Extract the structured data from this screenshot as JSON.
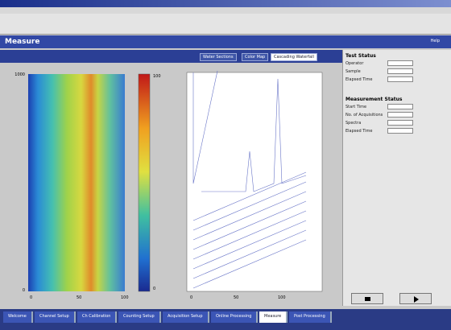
{
  "header": {
    "title": "Measure",
    "help": "Help"
  },
  "tabs": [
    "Water Sections",
    "Color Map",
    "Cascading Waterfall"
  ],
  "plot": {
    "y_top": "1000",
    "y_bottom": "0",
    "x_ticks": [
      "0",
      "50",
      "100"
    ],
    "colorbar_top": "100",
    "colorbar_bottom": "0",
    "waterfall_x_ticks": [
      "0",
      "50",
      "100"
    ]
  },
  "panel": {
    "test_status": "Test Status",
    "test_fields": [
      "Operator",
      "Sample",
      "Elapsed Time"
    ],
    "measurement_status": "Measurement Status",
    "measurement_fields": [
      "Start Time",
      "No. of Acquisitions",
      "Spectra",
      "Elapsed Time"
    ]
  },
  "nav": [
    "Welcome",
    "Channel Setup",
    "Ch Calibration",
    "Counting Setup",
    "Acquisition Setup",
    "Online Processing",
    "Measure",
    "Post Processing"
  ]
}
